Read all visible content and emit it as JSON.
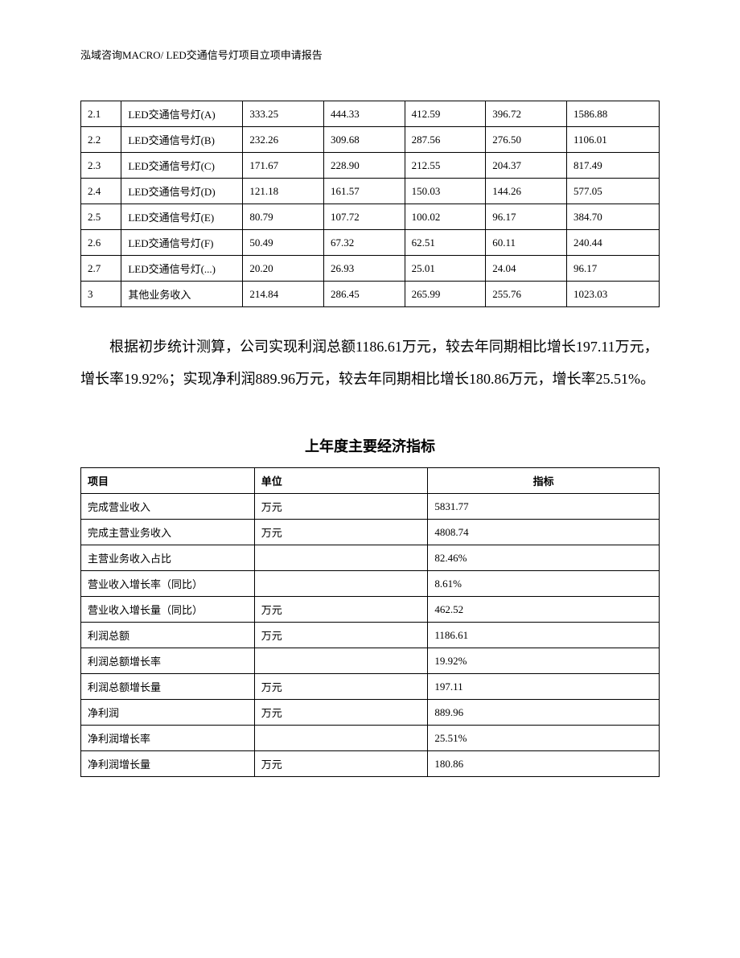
{
  "header": "泓域咨询MACRO/   LED交通信号灯项目立项申请报告",
  "table1": {
    "rows": [
      [
        "2.1",
        "LED交通信号灯(A)",
        "333.25",
        "444.33",
        "412.59",
        "396.72",
        "1586.88"
      ],
      [
        "2.2",
        "LED交通信号灯(B)",
        "232.26",
        "309.68",
        "287.56",
        "276.50",
        "1106.01"
      ],
      [
        "2.3",
        "LED交通信号灯(C)",
        "171.67",
        "228.90",
        "212.55",
        "204.37",
        "817.49"
      ],
      [
        "2.4",
        "LED交通信号灯(D)",
        "121.18",
        "161.57",
        "150.03",
        "144.26",
        "577.05"
      ],
      [
        "2.5",
        "LED交通信号灯(E)",
        "80.79",
        "107.72",
        "100.02",
        "96.17",
        "384.70"
      ],
      [
        "2.6",
        "LED交通信号灯(F)",
        "50.49",
        "67.32",
        "62.51",
        "60.11",
        "240.44"
      ],
      [
        "2.7",
        "LED交通信号灯(...)",
        "20.20",
        "26.93",
        "25.01",
        "24.04",
        "96.17"
      ],
      [
        "3",
        "其他业务收入",
        "214.84",
        "286.45",
        "265.99",
        "255.76",
        "1023.03"
      ]
    ]
  },
  "paragraph": "根据初步统计测算，公司实现利润总额1186.61万元，较去年同期相比增长197.11万元，增长率19.92%；实现净利润889.96万元，较去年同期相比增长180.86万元，增长率25.51%。",
  "title2": "上年度主要经济指标",
  "table2": {
    "headers": [
      "项目",
      "单位",
      "指标"
    ],
    "rows": [
      [
        "完成营业收入",
        "万元",
        "5831.77"
      ],
      [
        "完成主营业务收入",
        "万元",
        "4808.74"
      ],
      [
        "主营业务收入占比",
        "",
        "82.46%"
      ],
      [
        "营业收入增长率（同比）",
        "",
        "8.61%"
      ],
      [
        "营业收入增长量（同比）",
        "万元",
        "462.52"
      ],
      [
        "利润总额",
        "万元",
        "1186.61"
      ],
      [
        "利润总额增长率",
        "",
        "19.92%"
      ],
      [
        "利润总额增长量",
        "万元",
        "197.11"
      ],
      [
        "净利润",
        "万元",
        "889.96"
      ],
      [
        "净利润增长率",
        "",
        "25.51%"
      ],
      [
        "净利润增长量",
        "万元",
        "180.86"
      ]
    ]
  }
}
